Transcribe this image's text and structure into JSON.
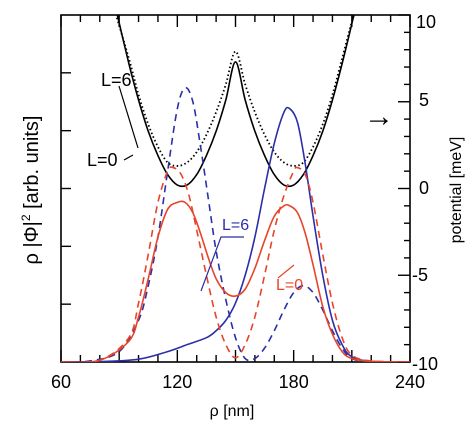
{
  "colors": {
    "axis": "#000000",
    "potential": "#000000",
    "blue": "#2b2fa8",
    "red": "#e8442a"
  },
  "chart_data": {
    "type": "line",
    "xlabel": "ρ [nm]",
    "ylabel_left_prefix": "ρ |Φ|",
    "ylabel_left_sup": "2",
    "ylabel_left_suffix": " [arb. units]",
    "ylabel_right": "potential [meV]",
    "xlim": [
      60,
      240
    ],
    "xticks": [
      60,
      120,
      180,
      240
    ],
    "ylim_left": [
      0,
      1
    ],
    "ylim_right": [
      -10,
      10
    ],
    "yticks_right": [
      -10,
      -5,
      0,
      5,
      10
    ],
    "annotations": {
      "L6_top": "L=6",
      "L0_top": "L=0",
      "L6_mid": "L=6",
      "L0_mid": "L=0",
      "arrow": "→"
    },
    "series": [
      {
        "axis": "right",
        "color_key": "potential",
        "style": "solid",
        "x": [
          88,
          95,
          100,
          105,
          110,
          115,
          120,
          125,
          130,
          135,
          140,
          145,
          150,
          155,
          160,
          165,
          170,
          175,
          180,
          185,
          190,
          195,
          200,
          205,
          210,
          212
        ],
        "y": [
          10.5,
          7.2,
          5.1,
          3.3,
          1.9,
          0.8,
          0.2,
          0.2,
          0.8,
          1.9,
          3.3,
          5.1,
          7.3,
          5.1,
          3.3,
          1.9,
          0.8,
          0.2,
          0.2,
          0.8,
          1.9,
          3.3,
          5.1,
          7.2,
          9.5,
          10.5
        ]
      },
      {
        "axis": "right",
        "color_key": "potential",
        "style": "dotted",
        "x": [
          87,
          95,
          100,
          105,
          110,
          115,
          120,
          125,
          130,
          135,
          140,
          145,
          150,
          155,
          160,
          165,
          170,
          175,
          180,
          185,
          190,
          195,
          200,
          205,
          210,
          213
        ],
        "y": [
          10.5,
          7.5,
          5.4,
          3.7,
          2.4,
          1.5,
          1.3,
          1.5,
          2.1,
          3.1,
          4.4,
          6.0,
          7.9,
          6.0,
          4.4,
          3.1,
          2.1,
          1.5,
          1.3,
          1.5,
          2.4,
          3.7,
          5.4,
          7.5,
          9.6,
          10.5
        ]
      },
      {
        "axis": "left",
        "color_key": "blue",
        "style": "dashed",
        "x": [
          60,
          75,
          90,
          100,
          105,
          110,
          115,
          120,
          124,
          128,
          132,
          136,
          140,
          145,
          150,
          155,
          160,
          165,
          170,
          175,
          180,
          185,
          190,
          195,
          200,
          205,
          210,
          220,
          240
        ],
        "y": [
          0,
          0.003,
          0.03,
          0.12,
          0.22,
          0.36,
          0.55,
          0.73,
          0.79,
          0.75,
          0.62,
          0.47,
          0.32,
          0.18,
          0.07,
          0.01,
          0.01,
          0.04,
          0.09,
          0.15,
          0.2,
          0.22,
          0.2,
          0.15,
          0.09,
          0.04,
          0.01,
          0,
          0
        ]
      },
      {
        "axis": "left",
        "color_key": "blue",
        "style": "solid",
        "x": [
          60,
          80,
          100,
          115,
          125,
          135,
          140,
          145,
          150,
          155,
          160,
          165,
          170,
          175,
          178,
          182,
          186,
          190,
          195,
          200,
          205,
          210,
          220,
          240
        ],
        "y": [
          0,
          0.001,
          0.008,
          0.03,
          0.05,
          0.07,
          0.09,
          0.12,
          0.17,
          0.25,
          0.36,
          0.5,
          0.63,
          0.72,
          0.73,
          0.69,
          0.57,
          0.42,
          0.25,
          0.12,
          0.05,
          0.015,
          0.002,
          0
        ]
      },
      {
        "axis": "left",
        "color_key": "red",
        "style": "dashed",
        "x": [
          60,
          80,
          95,
          100,
          105,
          110,
          115,
          118,
          122,
          126,
          130,
          135,
          140,
          145,
          150,
          155,
          160,
          165,
          170,
          175,
          180,
          182,
          186,
          190,
          195,
          200,
          205,
          210,
          220,
          240
        ],
        "y": [
          0,
          0.005,
          0.07,
          0.17,
          0.31,
          0.46,
          0.55,
          0.56,
          0.54,
          0.48,
          0.38,
          0.25,
          0.13,
          0.05,
          0.012,
          0.05,
          0.13,
          0.25,
          0.38,
          0.48,
          0.55,
          0.56,
          0.54,
          0.46,
          0.31,
          0.17,
          0.07,
          0.02,
          0.003,
          0
        ]
      },
      {
        "axis": "left",
        "color_key": "red",
        "style": "solid",
        "x": [
          60,
          80,
          95,
          100,
          105,
          110,
          115,
          120,
          124,
          128,
          132,
          136,
          140,
          145,
          150,
          155,
          160,
          165,
          170,
          175,
          178,
          182,
          186,
          190,
          195,
          200,
          205,
          210,
          220,
          240
        ],
        "y": [
          0,
          0.005,
          0.06,
          0.13,
          0.24,
          0.36,
          0.44,
          0.46,
          0.46,
          0.43,
          0.37,
          0.3,
          0.24,
          0.2,
          0.19,
          0.21,
          0.27,
          0.35,
          0.42,
          0.45,
          0.45,
          0.43,
          0.37,
          0.28,
          0.16,
          0.08,
          0.03,
          0.01,
          0.002,
          0
        ]
      }
    ]
  }
}
